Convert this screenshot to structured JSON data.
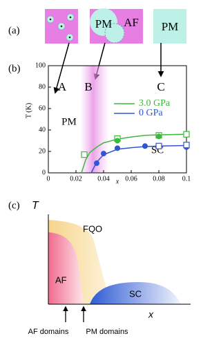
{
  "panels": {
    "a": {
      "label": "(a)",
      "texts": [
        "PM",
        "AF",
        "PM"
      ]
    },
    "b": {
      "label": "(b)"
    },
    "c": {
      "label": "(c)",
      "y_label": "T",
      "x_label": "x",
      "regions": [
        "FQO",
        "AF",
        "SC"
      ],
      "arrows": [
        "AF domains",
        "PM domains"
      ]
    }
  },
  "chart_data": {
    "type": "scatter",
    "x_label": "x",
    "y_label": "T (K)",
    "xlim": [
      0,
      0.1
    ],
    "xticks": [
      0,
      0.02,
      0.04,
      0.06,
      0.08,
      0.1
    ],
    "ylim": [
      0,
      100
    ],
    "yticks": [
      0,
      20,
      40,
      60,
      80,
      100
    ],
    "annotations": [
      "A",
      "B",
      "C",
      "PM",
      "SC"
    ],
    "series": [
      {
        "name": "3.0 GPa",
        "color": "#3cb83c",
        "x": [
          0.026,
          0.05,
          0.08,
          0.1,
          0.05,
          0.08
        ],
        "values": [
          17,
          32,
          35,
          36,
          30,
          34
        ],
        "markers": [
          "s",
          "s",
          "s",
          "s",
          "o",
          "o"
        ],
        "fit": {
          "x": [
            0.024,
            0.027,
            0.03,
            0.035,
            0.04,
            0.05,
            0.06,
            0.07,
            0.08,
            0.1
          ],
          "values": [
            0,
            12,
            19,
            24,
            28,
            31.5,
            33.5,
            35,
            35.5,
            36
          ]
        }
      },
      {
        "name": "0 GPa",
        "color": "#2f55d4",
        "x": [
          0.035,
          0.04,
          0.05,
          0.07,
          0.1,
          0.08,
          0.1
        ],
        "values": [
          9,
          18,
          23,
          25,
          24,
          25,
          26
        ],
        "markers": [
          "o",
          "o",
          "o",
          "o",
          "o",
          "s",
          "s"
        ],
        "fit": {
          "x": [
            0.031,
            0.033,
            0.035,
            0.04,
            0.05,
            0.06,
            0.07,
            0.08,
            0.1
          ],
          "values": [
            0,
            5,
            10,
            17,
            22,
            23.5,
            24.5,
            25,
            25.5
          ]
        }
      }
    ]
  }
}
